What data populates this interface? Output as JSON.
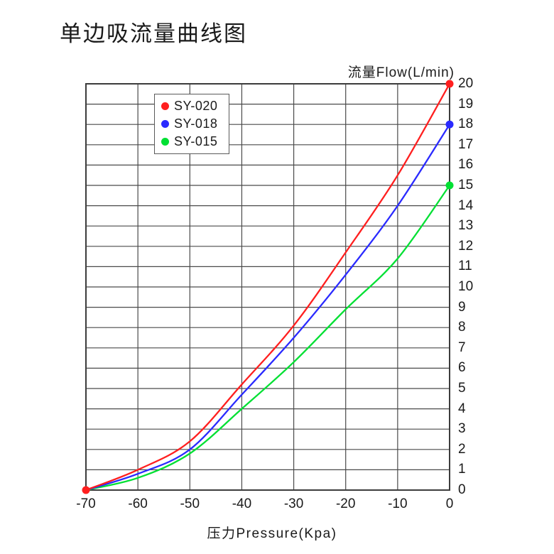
{
  "title": "单边吸流量曲线图",
  "colors": {
    "background": "#ffffff",
    "grid": "#4a4a4a",
    "border": "#3c3c3c",
    "text": "#1a1a1a",
    "series_red": "#ff1f1f",
    "series_blue": "#2a2aff",
    "series_green": "#00e033"
  },
  "chart_data": {
    "type": "line",
    "title": "单边吸流量曲线图",
    "xlabel": "压力Pressure(Kpa)",
    "ylabel": "流量Flow(L/min)",
    "xlim": [
      -70,
      0
    ],
    "ylim": [
      0,
      20
    ],
    "x_tick_step": 10,
    "y_tick_step": 1,
    "grid": "on",
    "legend_position": "inside-top-left",
    "x": [
      -70,
      -60,
      -50,
      -40,
      -30,
      -20,
      -10,
      0
    ],
    "x_tick_labels": [
      "-70",
      "-60",
      "-50",
      "-40",
      "-30",
      "-20",
      "-10",
      "0"
    ],
    "y_tick_labels": [
      "0",
      "1",
      "2",
      "3",
      "4",
      "5",
      "6",
      "7",
      "8",
      "9",
      "10",
      "11",
      "12",
      "13",
      "14",
      "15",
      "16",
      "17",
      "18",
      "19",
      "20"
    ],
    "series": [
      {
        "name": "SY-020",
        "color": "#ff1f1f",
        "values": [
          0,
          1.0,
          2.4,
          5.2,
          8.1,
          11.7,
          15.5,
          20.0
        ],
        "markers": [
          [
            -70,
            0
          ],
          [
            0,
            20
          ]
        ]
      },
      {
        "name": "SY-018",
        "color": "#2a2aff",
        "values": [
          0,
          0.8,
          2.0,
          4.7,
          7.5,
          10.6,
          14.0,
          18.0
        ],
        "markers": [
          [
            0,
            18
          ]
        ]
      },
      {
        "name": "SY-015",
        "color": "#00e033",
        "values": [
          0,
          0.6,
          1.8,
          4.0,
          6.3,
          8.9,
          11.4,
          15.0
        ],
        "markers": [
          [
            0,
            15
          ]
        ]
      }
    ]
  }
}
